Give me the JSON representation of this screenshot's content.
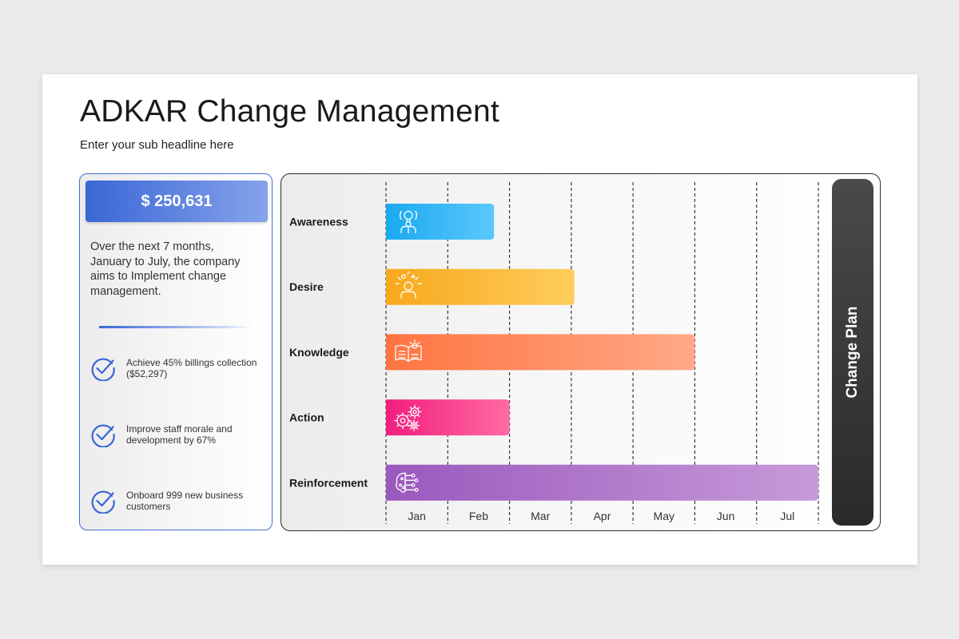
{
  "title": "ADKAR Change Management",
  "subtitle": "Enter your sub headline here",
  "summary": {
    "amount": "$ 250,631",
    "description": "Over the next 7 months, January to July, the company aims to Implement change management."
  },
  "goals": [
    {
      "text": "Achieve 45% billings collection ($52,297)"
    },
    {
      "text": "Improve staff morale and development by 67%"
    },
    {
      "text": "Onboard 999 new business customers"
    }
  ],
  "side_label": "Change Plan",
  "chart_data": {
    "type": "bar",
    "orientation": "horizontal",
    "categories": [
      "Awareness",
      "Desire",
      "Knowledge",
      "Action",
      "Reinforcement"
    ],
    "x_ticks": [
      "Jan",
      "Feb",
      "Mar",
      "Apr",
      "May",
      "Jun",
      "Jul"
    ],
    "series": [
      {
        "values": [
          1.75,
          3.05,
          5.0,
          2.0,
          7.0
        ]
      }
    ],
    "xlim": [
      0,
      7
    ],
    "grid": "dashed-vertical",
    "legend": "none",
    "icons": [
      "lightbulb-person-icon",
      "thinking-person-icon",
      "book-icon",
      "gears-icon",
      "brain-network-icon"
    ],
    "colors": [
      [
        "#1aa9ef",
        "#5cc8fb"
      ],
      [
        "#f7a81d",
        "#ffcd5c"
      ],
      [
        "#ff7440",
        "#ffa987"
      ],
      [
        "#f21e7d",
        "#ff6aa3"
      ],
      [
        "#9a59bd",
        "#c79ad9"
      ]
    ]
  }
}
